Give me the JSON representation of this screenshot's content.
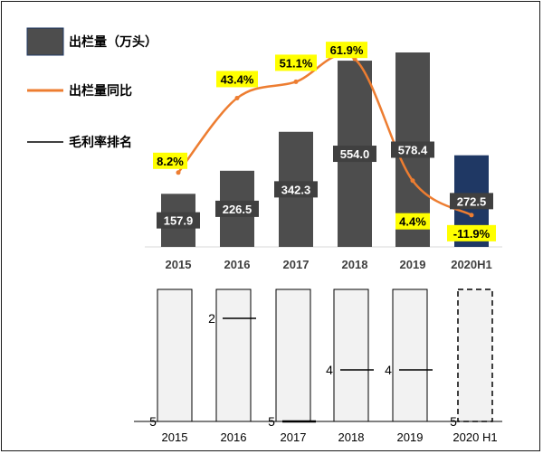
{
  "legend": {
    "volume_label": "出栏量（万头）",
    "yoy_label": "出栏量同比",
    "rank_label": "毛利率排名"
  },
  "colors": {
    "bar": "#4d4d4d",
    "bar_highlight": "#1f3864",
    "line": "#ed7d31",
    "label_bg_yellow": "#ffff00",
    "label_bg_dark": "#404040",
    "box_fill": "#f2f2f2"
  },
  "chart_data": [
    {
      "type": "bar",
      "categories": [
        "2015",
        "2016",
        "2017",
        "2018",
        "2019",
        "2020H1"
      ],
      "series": [
        {
          "name": "出栏量（万头）",
          "values": [
            157.9,
            226.5,
            342.3,
            554.0,
            578.4,
            272.5
          ],
          "labels": [
            "157.9",
            "226.5",
            "342.3",
            "554.0",
            "578.4",
            "272.5"
          ]
        },
        {
          "name": "出栏量同比",
          "type": "line",
          "values": [
            8.2,
            43.4,
            51.1,
            61.9,
            4.4,
            -11.9
          ],
          "labels": [
            "8.2%",
            "43.4%",
            "51.1%",
            "61.9%",
            "4.4%",
            "-11.9%"
          ]
        }
      ],
      "highlight_index": 5,
      "grid": false
    },
    {
      "type": "bar",
      "categories": [
        "2015",
        "2016",
        "2017",
        "2018",
        "2019",
        "2020 H1"
      ],
      "series": [
        {
          "name": "毛利率排名",
          "values": [
            5,
            2,
            5,
            4,
            4,
            5
          ]
        }
      ],
      "dashed_index": 5,
      "ylim": [
        1,
        5
      ]
    }
  ]
}
